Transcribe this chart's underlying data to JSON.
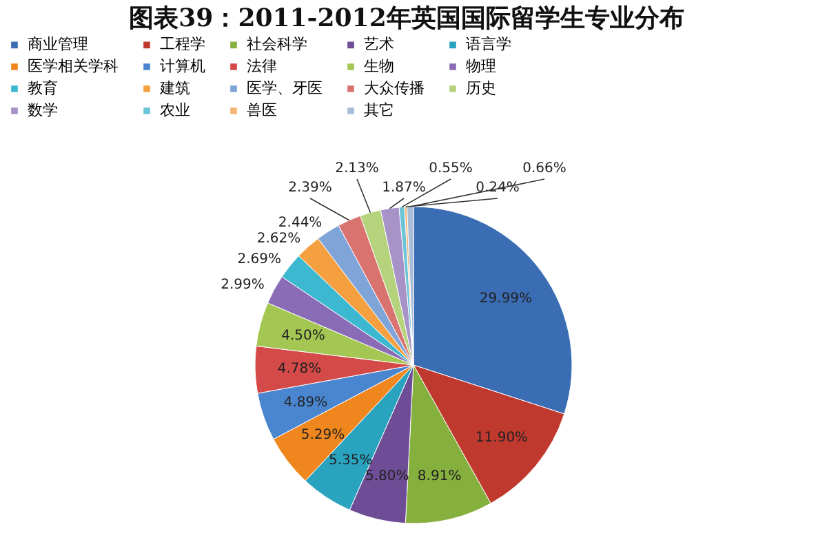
{
  "chart_data": {
    "type": "pie",
    "title": "图表39：2011-2012年英国国际留学生专业分布",
    "categories": [
      "商业管理",
      "工程学",
      "社会科学",
      "艺术",
      "语言学",
      "医学相关学科",
      "计算机",
      "法律",
      "生物",
      "物理",
      "教育",
      "建筑",
      "医学、牙医",
      "大众传播",
      "历史",
      "数学",
      "农业",
      "兽医",
      "其它"
    ],
    "values": [
      29.99,
      11.9,
      8.91,
      5.8,
      5.35,
      5.29,
      4.89,
      4.78,
      4.5,
      2.99,
      2.69,
      2.62,
      2.44,
      2.39,
      2.13,
      1.87,
      0.55,
      0.24,
      0.66
    ],
    "colors": [
      "#3b6db5",
      "#c0392f",
      "#86b03e",
      "#6e4d96",
      "#2aa3bf",
      "#f0871e",
      "#4a86d0",
      "#d44a48",
      "#a4c653",
      "#8a6bb5",
      "#3cb8d0",
      "#f5a040",
      "#7ea4d8",
      "#d87370",
      "#b5d27c",
      "#a893c8",
      "#6cc4d8",
      "#f4b677",
      "#a8bcd8"
    ],
    "value_labels": [
      "29.99%",
      "11.90%",
      "8.91%",
      "5.80%",
      "5.35%",
      "5.29%",
      "4.89%",
      "4.78%",
      "4.50%",
      "2.99%",
      "2.69%",
      "2.62%",
      "2.44%",
      "2.39%",
      "2.13%",
      "1.87%",
      "0.55%",
      "0.24%",
      "0.66%"
    ],
    "legend": "top"
  }
}
